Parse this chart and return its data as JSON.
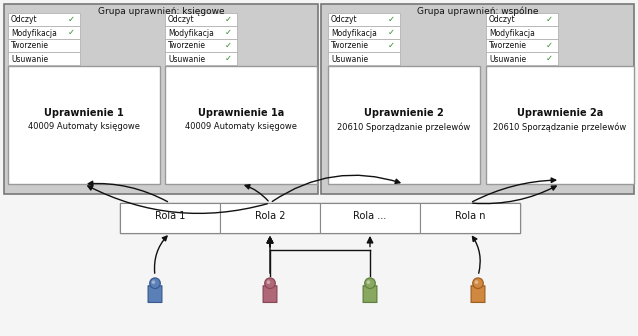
{
  "fig_width": 6.38,
  "fig_height": 3.36,
  "bg_color": "#f5f5f5",
  "group_bg": "#cccccc",
  "white": "#ffffff",
  "group1_label": "Grupa uprawnień: księgowe",
  "group2_label": "Grupa uprawnień: wspólne",
  "perm_items": [
    "Odczyt",
    "Modyfikacja",
    "Tworzenie",
    "Usuwanie"
  ],
  "perm1_checks": [
    true,
    true,
    false,
    false
  ],
  "perm1a_checks": [
    true,
    true,
    true,
    true
  ],
  "perm2_checks": [
    true,
    true,
    true,
    false
  ],
  "perm2a_checks": [
    true,
    false,
    true,
    true
  ],
  "uprawnienie1_title": "Uprawnienie 1",
  "uprawnienie1_sub": "40009 Automaty księgowe",
  "uprawnienie1a_title": "Uprawnienie 1a",
  "uprawnienie1a_sub": "40009 Automaty księgowe",
  "uprawnienie2_title": "Uprawnienie 2",
  "uprawnienie2_sub": "20610 Sporządzanie przelewów",
  "uprawnienie2a_title": "Uprawnienie 2a",
  "uprawnienie2a_sub": "20610 Sporządzanie przelewów",
  "roles": [
    "Rola 1",
    "Rola 2",
    "Rola ...",
    "Rola n"
  ],
  "user_colors": [
    "#5b80b8",
    "#b06878",
    "#88a860",
    "#d08840"
  ],
  "user_dark": [
    "#3a5a90",
    "#8a4858",
    "#608040",
    "#a06020"
  ],
  "check_color": "#2a8a2a",
  "arrow_color": "#111111"
}
